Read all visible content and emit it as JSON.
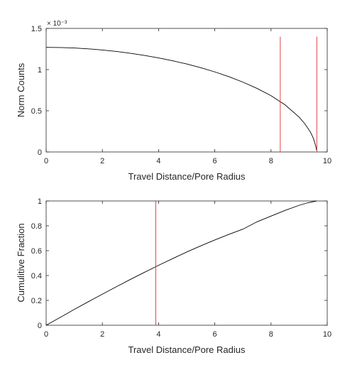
{
  "chart_data": [
    {
      "type": "line",
      "xlabel": "Travel Distance/Pore Radius",
      "ylabel": "Norm Counts",
      "exponent_label": "× 10⁻³",
      "xlim": [
        0,
        10
      ],
      "ylim": [
        0,
        1.5
      ],
      "x_ticks": [
        "0",
        "2",
        "4",
        "6",
        "8",
        "10"
      ],
      "y_ticks": [
        "0",
        "0.5",
        "1",
        "1.5"
      ],
      "series": [
        {
          "color": "#000000",
          "x": [
            0,
            0.5,
            1,
            1.5,
            2,
            2.5,
            3,
            3.5,
            4,
            4.5,
            5,
            5.5,
            6,
            6.5,
            7,
            7.5,
            8,
            8.5,
            9,
            9.2,
            9.4,
            9.5,
            9.55,
            9.6,
            9.62
          ],
          "y": [
            1.27,
            1.268,
            1.262,
            1.252,
            1.238,
            1.22,
            1.198,
            1.172,
            1.142,
            1.107,
            1.068,
            1.023,
            0.972,
            0.914,
            0.848,
            0.772,
            0.683,
            0.572,
            0.423,
            0.344,
            0.243,
            0.172,
            0.122,
            0.06,
            0.02
          ]
        }
      ],
      "vlines": [
        {
          "x": 8.33,
          "y_top": 1.4,
          "color": "#e03030"
        },
        {
          "x": 9.63,
          "y_top": 1.4,
          "color": "#e03030"
        }
      ]
    },
    {
      "type": "line",
      "xlabel": "Travel Distance/Pore Radius",
      "ylabel": "Cumulitive Fraction",
      "xlim": [
        0,
        10
      ],
      "ylim": [
        0,
        1
      ],
      "x_ticks": [
        "0",
        "2",
        "4",
        "6",
        "8",
        "10"
      ],
      "y_ticks": [
        "0",
        "0.2",
        "0.4",
        "0.6",
        "0.8",
        "1"
      ],
      "series": [
        {
          "color": "#000000",
          "x": [
            0,
            0.5,
            1,
            1.5,
            2,
            2.5,
            3,
            3.5,
            4,
            4.5,
            5,
            5.5,
            6,
            6.5,
            7,
            7.5,
            8,
            8.5,
            9,
            9.3,
            9.62
          ],
          "y": [
            0,
            0.063,
            0.127,
            0.189,
            0.25,
            0.31,
            0.369,
            0.426,
            0.482,
            0.536,
            0.589,
            0.639,
            0.686,
            0.731,
            0.773,
            0.832,
            0.878,
            0.924,
            0.965,
            0.985,
            1.0
          ]
        }
      ],
      "vlines": [
        {
          "x": 3.9,
          "y_top": 1.0,
          "color": "#e03030"
        }
      ]
    }
  ]
}
